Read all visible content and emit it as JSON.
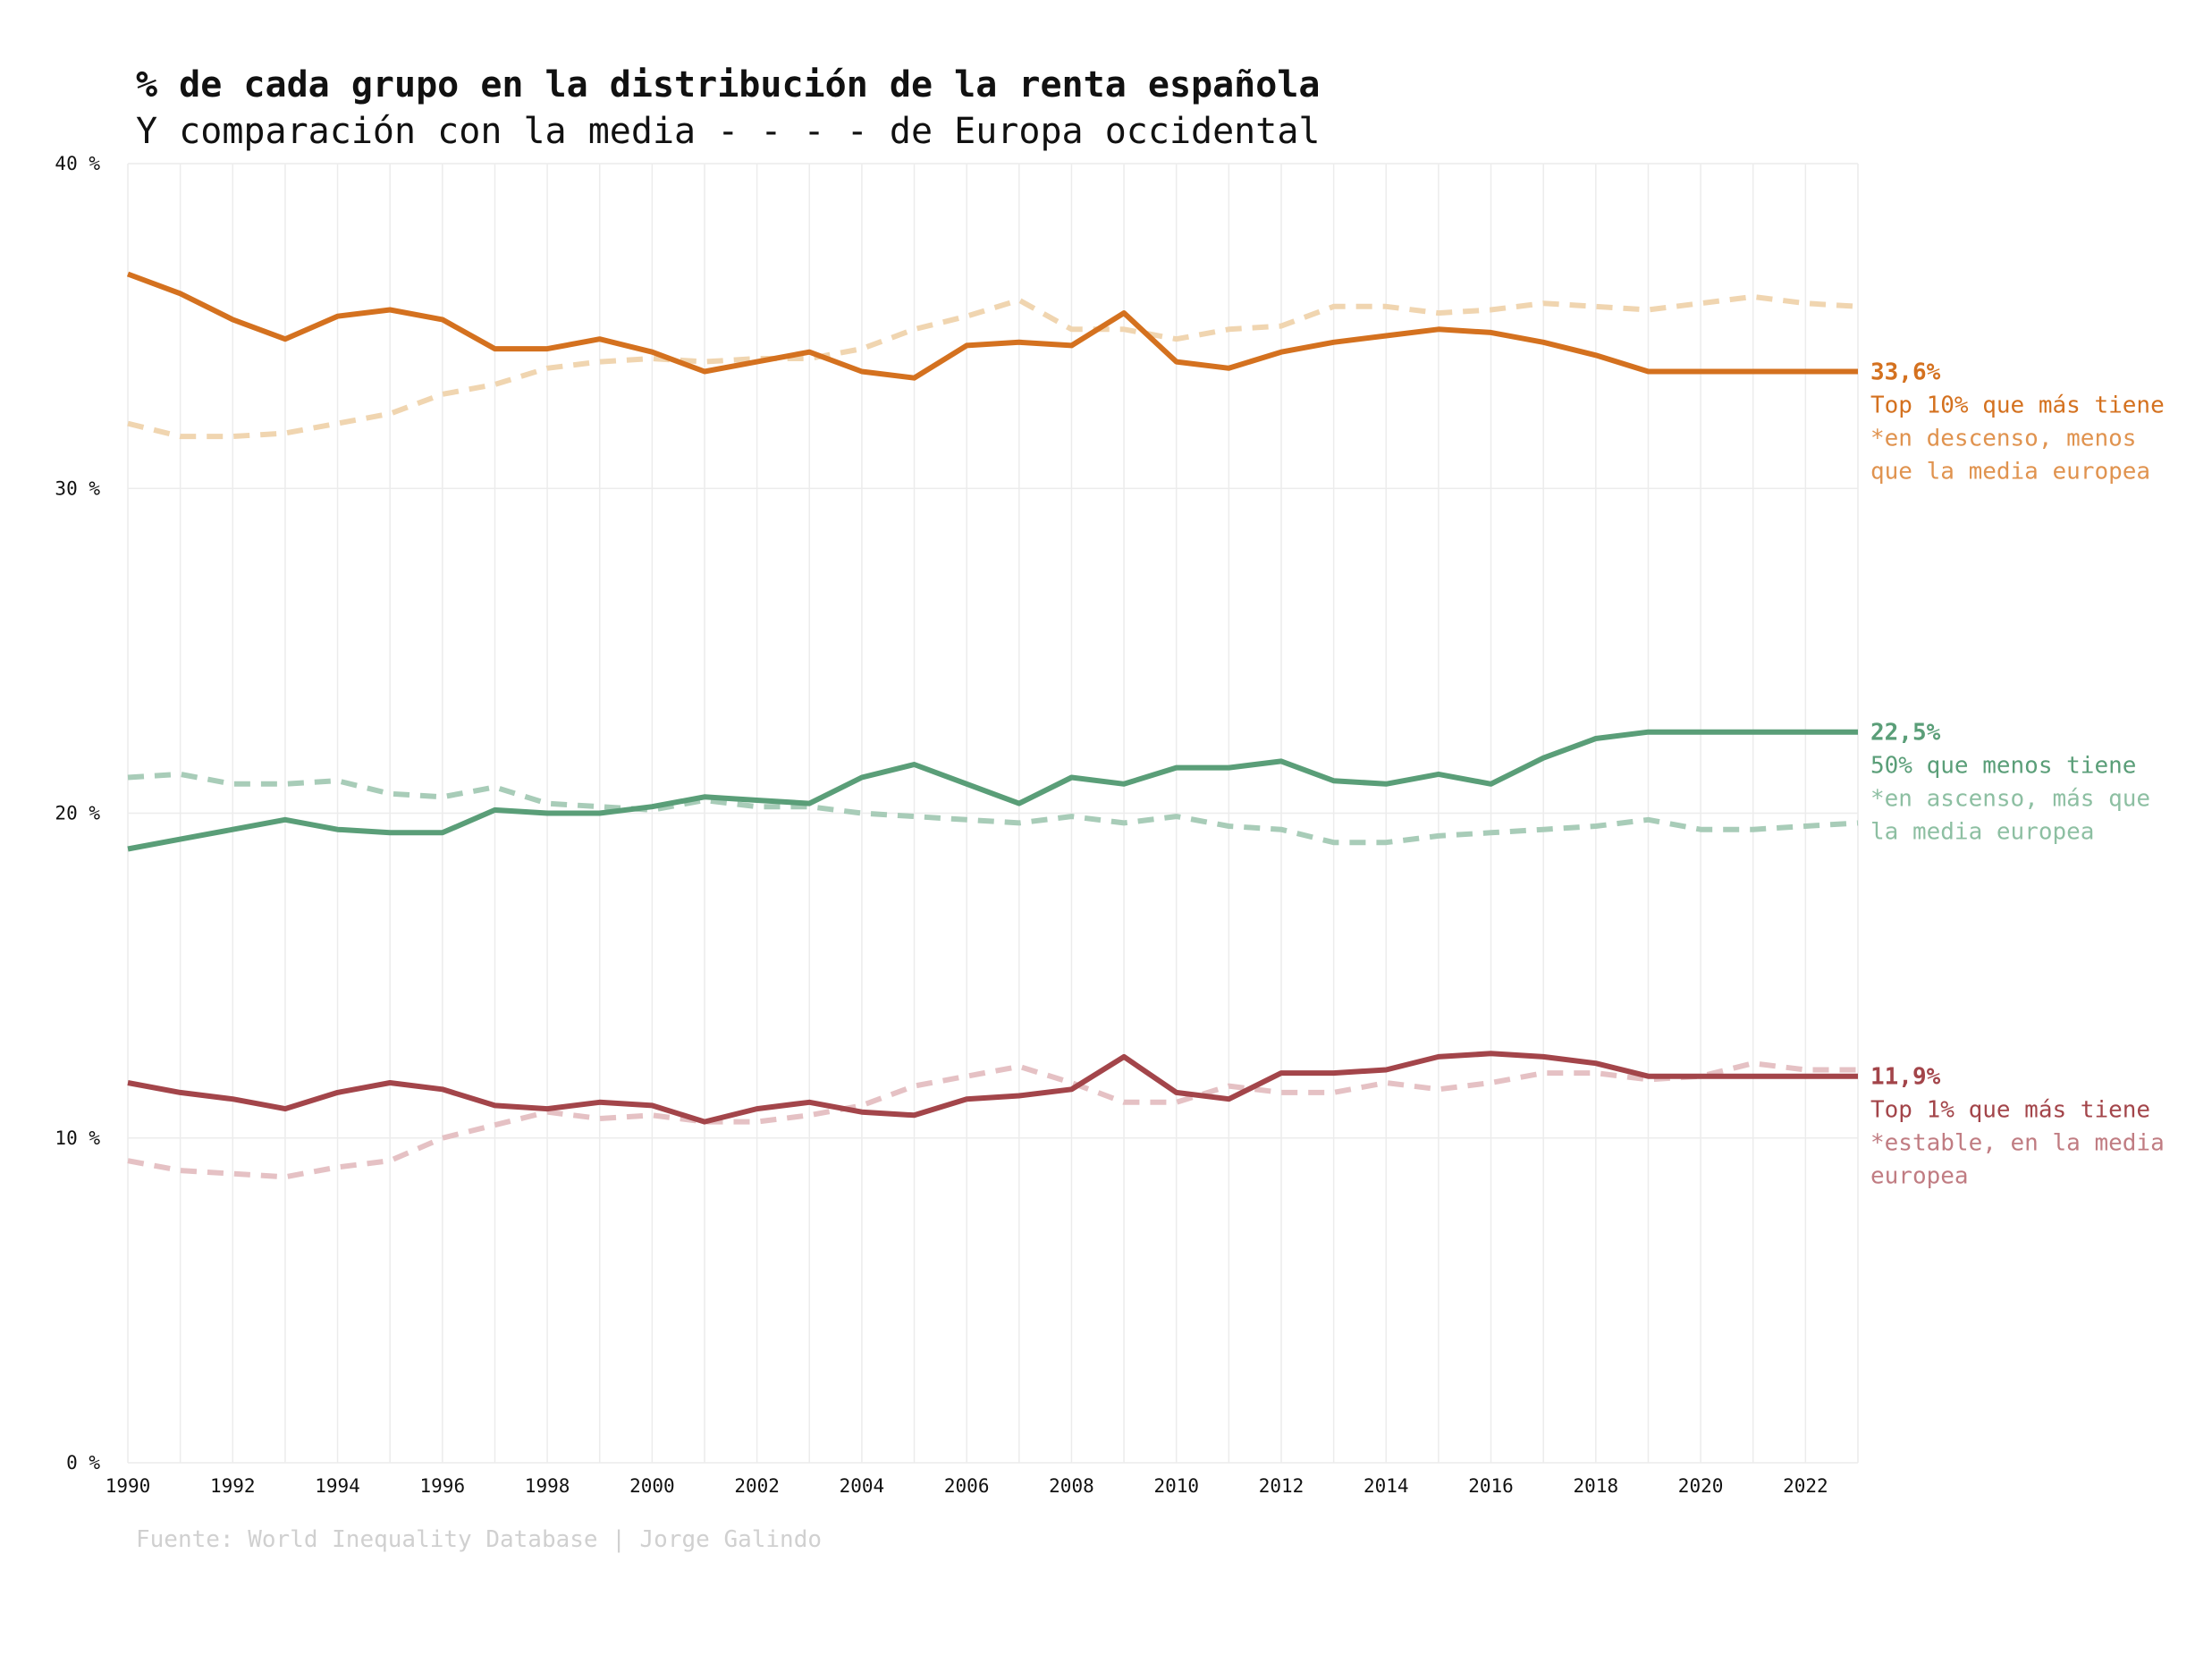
{
  "title": "% de cada grupo en la distribución de la renta española",
  "subtitle": "Y comparación con la media - - - - de Europa occidental",
  "source": "Fuente: World Inequality Database | Jorge Galindo",
  "chart_data": {
    "type": "line",
    "x": [
      1990,
      1991,
      1992,
      1993,
      1994,
      1995,
      1996,
      1997,
      1998,
      1999,
      2000,
      2001,
      2002,
      2003,
      2004,
      2005,
      2006,
      2007,
      2008,
      2009,
      2010,
      2011,
      2012,
      2013,
      2014,
      2015,
      2016,
      2017,
      2018,
      2019,
      2020,
      2021,
      2022,
      2023
    ],
    "xticks": [
      "1990",
      "1992",
      "1994",
      "1996",
      "1998",
      "2000",
      "2002",
      "2004",
      "2006",
      "2008",
      "2010",
      "2012",
      "2014",
      "2016",
      "2018",
      "2020",
      "2022"
    ],
    "yticks": [
      "0 %",
      "10 %",
      "20 %",
      "30 %",
      "40 %"
    ],
    "ylim": [
      0,
      40
    ],
    "xlim": [
      1990,
      2023
    ],
    "grid": true,
    "legend": "direct labels at right",
    "series": [
      {
        "key": "top10",
        "color": "#d4711f",
        "dash_color": "#f0d5b0",
        "values": [
          36.6,
          36.0,
          35.2,
          34.6,
          35.3,
          35.5,
          35.2,
          34.3,
          34.3,
          34.6,
          34.2,
          33.6,
          33.9,
          34.2,
          33.6,
          33.4,
          34.4,
          34.5,
          34.4,
          35.4,
          33.9,
          33.7,
          34.2,
          34.5,
          34.7,
          34.9,
          34.8,
          34.5,
          34.1,
          33.6,
          33.6,
          33.6,
          33.6,
          33.6
        ],
        "europe_values": [
          32.0,
          31.6,
          31.6,
          31.7,
          32.0,
          32.3,
          32.9,
          33.2,
          33.7,
          33.9,
          34.0,
          33.9,
          34.0,
          34.0,
          34.3,
          34.9,
          35.3,
          35.8,
          34.9,
          34.9,
          34.6,
          34.9,
          35.0,
          35.6,
          35.6,
          35.4,
          35.5,
          35.7,
          35.6,
          35.5,
          35.7,
          35.9,
          35.7,
          35.6
        ],
        "label_value": "33,6%",
        "label_name": "Top 10% que más tiene",
        "label_note": [
          "*en descenso, menos",
          "que la media europea"
        ],
        "note_color": "#e0934f"
      },
      {
        "key": "bottom50",
        "color": "#5a9e78",
        "dash_color": "#a8ccb8",
        "values": [
          18.9,
          19.2,
          19.5,
          19.8,
          19.5,
          19.4,
          19.4,
          20.1,
          20.0,
          20.0,
          20.2,
          20.5,
          20.4,
          20.3,
          21.1,
          21.5,
          20.9,
          20.3,
          21.1,
          20.9,
          21.4,
          21.4,
          21.6,
          21.0,
          20.9,
          21.2,
          20.9,
          21.7,
          22.3,
          22.5,
          22.5,
          22.5,
          22.5,
          22.5
        ],
        "europe_values": [
          21.1,
          21.2,
          20.9,
          20.9,
          21.0,
          20.6,
          20.5,
          20.8,
          20.3,
          20.2,
          20.1,
          20.4,
          20.2,
          20.2,
          20.0,
          19.9,
          19.8,
          19.7,
          19.9,
          19.7,
          19.9,
          19.6,
          19.5,
          19.1,
          19.1,
          19.3,
          19.4,
          19.5,
          19.6,
          19.8,
          19.5,
          19.5,
          19.6,
          19.7
        ],
        "label_value": "22,5%",
        "label_name": "50% que menos tiene",
        "label_note": [
          "*en ascenso, más que",
          "la media europea"
        ],
        "note_color": "#8dbfa2"
      },
      {
        "key": "top1",
        "color": "#a3454a",
        "dash_color": "#e5c1c4",
        "values": [
          11.7,
          11.4,
          11.2,
          10.9,
          11.4,
          11.7,
          11.5,
          11.0,
          10.9,
          11.1,
          11.0,
          10.5,
          10.9,
          11.1,
          10.8,
          10.7,
          11.2,
          11.3,
          11.5,
          12.5,
          11.4,
          11.2,
          12.0,
          12.0,
          12.1,
          12.5,
          12.6,
          12.5,
          12.3,
          11.9,
          11.9,
          11.9,
          11.9,
          11.9
        ],
        "europe_values": [
          9.3,
          9.0,
          8.9,
          8.8,
          9.1,
          9.3,
          10.0,
          10.4,
          10.8,
          10.6,
          10.7,
          10.5,
          10.5,
          10.7,
          11.0,
          11.6,
          11.9,
          12.2,
          11.7,
          11.1,
          11.1,
          11.6,
          11.4,
          11.4,
          11.7,
          11.5,
          11.7,
          12.0,
          12.0,
          11.8,
          11.9,
          12.3,
          12.1,
          12.1
        ],
        "label_value": "11,9%",
        "label_name": "Top 1% que más tiene",
        "label_note": [
          "*estable, en la media",
          "europea"
        ],
        "note_color": "#c07c82"
      }
    ]
  }
}
